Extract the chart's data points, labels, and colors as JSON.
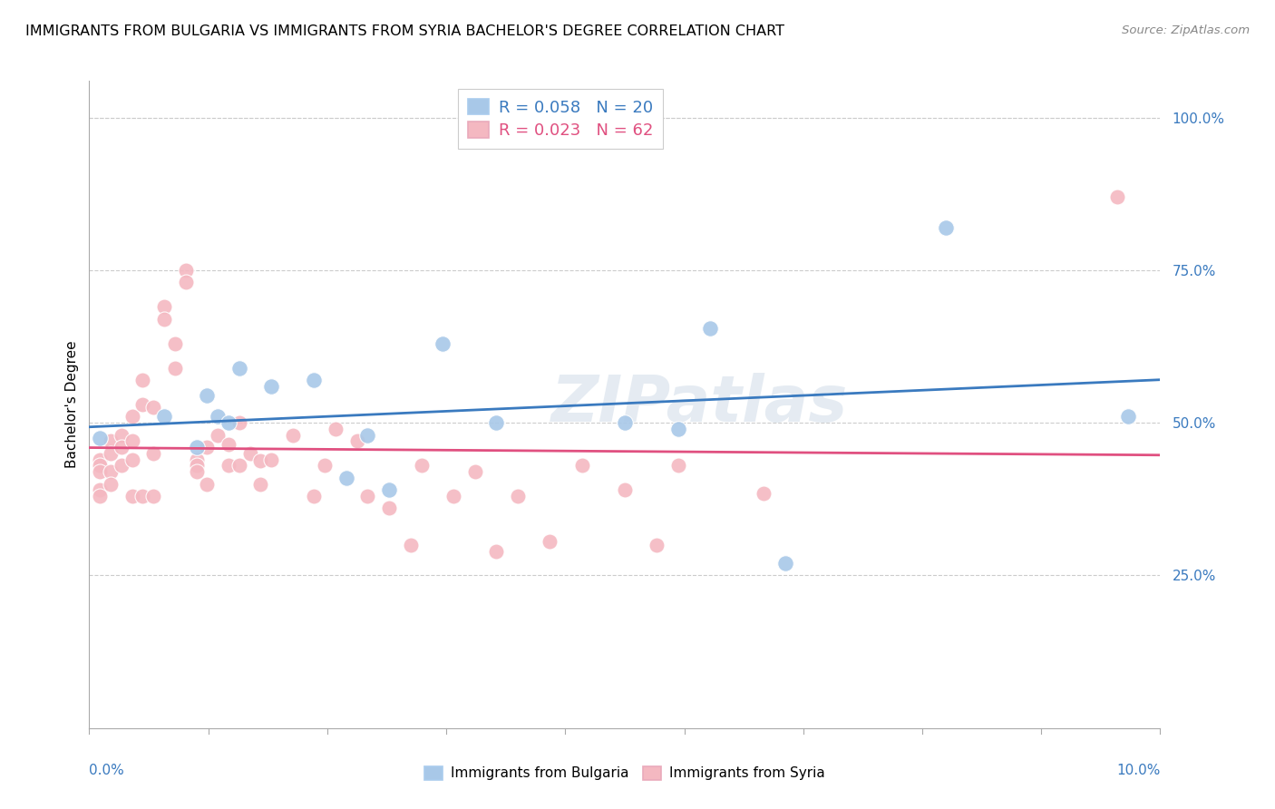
{
  "title": "IMMIGRANTS FROM BULGARIA VS IMMIGRANTS FROM SYRIA BACHELOR'S DEGREE CORRELATION CHART",
  "source": "Source: ZipAtlas.com",
  "ylabel": "Bachelor's Degree",
  "xlim": [
    0.0,
    0.1
  ],
  "ylim": [
    0.0,
    1.06
  ],
  "watermark": "ZIPatlas",
  "bulgaria_color": "#a8c8e8",
  "syria_color": "#f4b8c1",
  "bulgaria_line_color": "#3a7abf",
  "syria_line_color": "#e05080",
  "legend_bulgaria_R": "R = 0.058",
  "legend_bulgaria_N": "N = 20",
  "legend_syria_R": "R = 0.023",
  "legend_syria_N": "N = 62",
  "bulgaria_x": [
    0.001,
    0.007,
    0.01,
    0.011,
    0.012,
    0.013,
    0.014,
    0.017,
    0.021,
    0.024,
    0.026,
    0.028,
    0.033,
    0.038,
    0.05,
    0.055,
    0.058,
    0.065,
    0.08,
    0.097
  ],
  "bulgaria_y": [
    0.475,
    0.51,
    0.46,
    0.545,
    0.51,
    0.5,
    0.59,
    0.56,
    0.57,
    0.41,
    0.48,
    0.39,
    0.63,
    0.5,
    0.5,
    0.49,
    0.655,
    0.27,
    0.82,
    0.51
  ],
  "syria_x": [
    0.001,
    0.001,
    0.001,
    0.001,
    0.001,
    0.002,
    0.002,
    0.002,
    0.002,
    0.003,
    0.003,
    0.003,
    0.004,
    0.004,
    0.004,
    0.004,
    0.005,
    0.005,
    0.005,
    0.006,
    0.006,
    0.006,
    0.007,
    0.007,
    0.008,
    0.008,
    0.009,
    0.009,
    0.01,
    0.01,
    0.01,
    0.011,
    0.011,
    0.012,
    0.013,
    0.013,
    0.014,
    0.014,
    0.015,
    0.016,
    0.016,
    0.017,
    0.019,
    0.021,
    0.022,
    0.023,
    0.025,
    0.026,
    0.028,
    0.03,
    0.031,
    0.034,
    0.036,
    0.038,
    0.04,
    0.043,
    0.046,
    0.05,
    0.053,
    0.055,
    0.063,
    0.096
  ],
  "syria_y": [
    0.44,
    0.43,
    0.42,
    0.39,
    0.38,
    0.47,
    0.45,
    0.42,
    0.4,
    0.48,
    0.46,
    0.43,
    0.51,
    0.47,
    0.44,
    0.38,
    0.57,
    0.53,
    0.38,
    0.525,
    0.45,
    0.38,
    0.69,
    0.67,
    0.63,
    0.59,
    0.75,
    0.73,
    0.44,
    0.43,
    0.42,
    0.46,
    0.4,
    0.48,
    0.465,
    0.43,
    0.5,
    0.43,
    0.45,
    0.438,
    0.4,
    0.44,
    0.48,
    0.38,
    0.43,
    0.49,
    0.47,
    0.38,
    0.36,
    0.3,
    0.43,
    0.38,
    0.42,
    0.29,
    0.38,
    0.305,
    0.43,
    0.39,
    0.3,
    0.43,
    0.385,
    0.87
  ]
}
